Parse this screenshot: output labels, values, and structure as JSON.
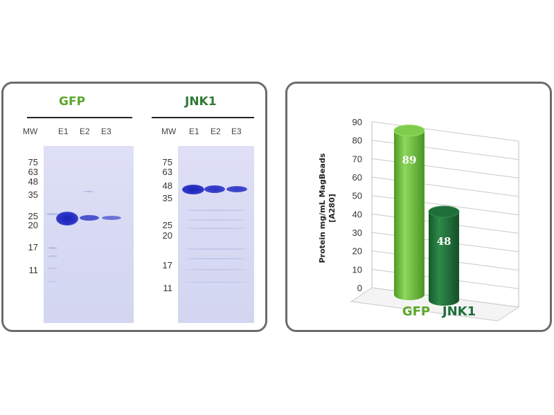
{
  "gel_panel": {
    "gfp_title": "GFP",
    "jnk1_title": "JNK1",
    "gfp_title_color": "#5aa82a",
    "jnk1_title_color": "#2e7a34",
    "lane_labels": [
      "MW",
      "E1",
      "E2",
      "E3"
    ],
    "gfp_mw_markers": [
      "75",
      "63",
      "48",
      "35",
      "25",
      "20",
      "17",
      "11"
    ],
    "jnk1_mw_markers": [
      "75",
      "63",
      "48",
      "35",
      "25",
      "20",
      "17",
      "11"
    ]
  },
  "chart_data": {
    "type": "bar",
    "style": "3d-cylinder",
    "categories": [
      "GFP",
      "JNK1"
    ],
    "values": [
      89,
      48
    ],
    "data_labels": [
      "89",
      "48"
    ],
    "colors": [
      "#6abf3a",
      "#1f6f3a"
    ],
    "category_colors": [
      "#5aa82a",
      "#1f6f3a"
    ],
    "ylabel_line1": "Protein mg/mL MagBeads",
    "ylabel_line2": "[A280]",
    "ylim": [
      0,
      90
    ],
    "yticks": [
      "0",
      "10",
      "20",
      "30",
      "40",
      "50",
      "60",
      "70",
      "80",
      "90"
    ],
    "grid": true
  }
}
